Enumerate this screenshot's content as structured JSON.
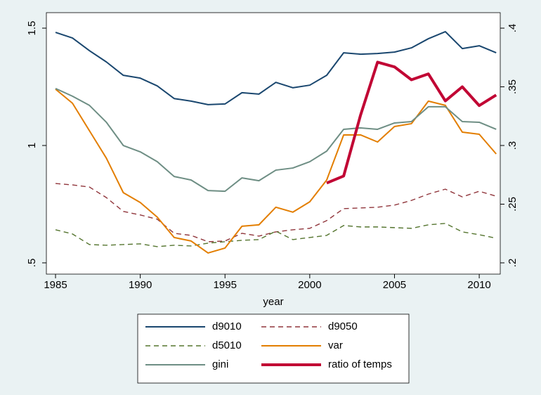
{
  "chart_data": {
    "type": "line",
    "x": [
      1985,
      1986,
      1987,
      1988,
      1989,
      1990,
      1991,
      1992,
      1993,
      1994,
      1995,
      1996,
      1997,
      1998,
      1999,
      2000,
      2001,
      2002,
      2003,
      2004,
      2005,
      2006,
      2007,
      2008,
      2009,
      2010,
      2011
    ],
    "xlabel": "year",
    "xlim": [
      1984.46,
      2011.24
    ],
    "xticks": [
      1985,
      1990,
      1995,
      2000,
      2005,
      2010
    ],
    "ylim": [
      0.452,
      1.566
    ],
    "yticks": [
      {
        "value": 0.5,
        "label": ".5"
      },
      1,
      1.5
    ],
    "y2lim": [
      0.1904,
      0.4132
    ],
    "y2ticks": [
      {
        "value": 0.2,
        "label": ".2"
      },
      {
        "value": 0.25,
        "label": ".25"
      },
      {
        "value": 0.3,
        "label": ".3"
      },
      {
        "value": 0.35,
        "label": ".35"
      },
      {
        "value": 0.4,
        "label": ".4"
      }
    ],
    "legend": "bottom",
    "series": [
      {
        "name": "d9010",
        "color": "#1a476f",
        "width": 2,
        "dashed": false,
        "values": [
          1.482,
          1.458,
          1.404,
          1.356,
          1.299,
          1.287,
          1.254,
          1.2,
          1.189,
          1.174,
          1.177,
          1.225,
          1.219,
          1.269,
          1.246,
          1.257,
          1.299,
          1.395,
          1.389,
          1.392,
          1.398,
          1.416,
          1.455,
          1.485,
          1.413,
          1.425,
          1.395
        ]
      },
      {
        "name": "d9050",
        "color": "#90353b",
        "width": 1.4,
        "dashed": true,
        "values": [
          0.838,
          0.832,
          0.823,
          0.778,
          0.719,
          0.704,
          0.686,
          0.626,
          0.617,
          0.59,
          0.593,
          0.626,
          0.614,
          0.632,
          0.641,
          0.647,
          0.68,
          0.731,
          0.734,
          0.737,
          0.746,
          0.766,
          0.793,
          0.814,
          0.781,
          0.805,
          0.784
        ]
      },
      {
        "name": "d5010",
        "color": "#55752f",
        "width": 1.4,
        "dashed": true,
        "values": [
          0.641,
          0.623,
          0.578,
          0.575,
          0.578,
          0.581,
          0.569,
          0.575,
          0.572,
          0.584,
          0.59,
          0.596,
          0.599,
          0.635,
          0.599,
          0.608,
          0.617,
          0.659,
          0.653,
          0.653,
          0.65,
          0.647,
          0.662,
          0.668,
          0.632,
          0.62,
          0.605
        ]
      },
      {
        "name": "var",
        "color": "#e37e00",
        "width": 2,
        "dashed": false,
        "values": [
          1.24,
          1.18,
          1.063,
          0.946,
          0.799,
          0.757,
          0.695,
          0.608,
          0.593,
          0.542,
          0.563,
          0.656,
          0.662,
          0.737,
          0.716,
          0.76,
          0.853,
          1.045,
          1.045,
          1.015,
          1.081,
          1.093,
          1.189,
          1.171,
          1.057,
          1.048,
          0.964
        ]
      },
      {
        "name": "gini",
        "color": "#6e8e84",
        "width": 2,
        "dashed": false,
        "values": [
          1.243,
          1.21,
          1.171,
          1.099,
          1.0,
          0.973,
          0.931,
          0.868,
          0.853,
          0.808,
          0.805,
          0.862,
          0.85,
          0.895,
          0.904,
          0.931,
          0.976,
          1.069,
          1.075,
          1.069,
          1.096,
          1.102,
          1.165,
          1.165,
          1.102,
          1.099,
          1.069
        ]
      },
      {
        "name": "ratio of temps",
        "color": "#c10534",
        "width": 4,
        "dashed": false,
        "axis": "y2",
        "values": [
          null,
          null,
          null,
          null,
          null,
          null,
          null,
          null,
          null,
          null,
          null,
          null,
          null,
          null,
          null,
          null,
          0.268,
          0.274,
          0.326,
          0.371,
          0.367,
          0.356,
          0.361,
          0.338,
          0.35,
          0.334,
          0.343
        ]
      }
    ]
  }
}
